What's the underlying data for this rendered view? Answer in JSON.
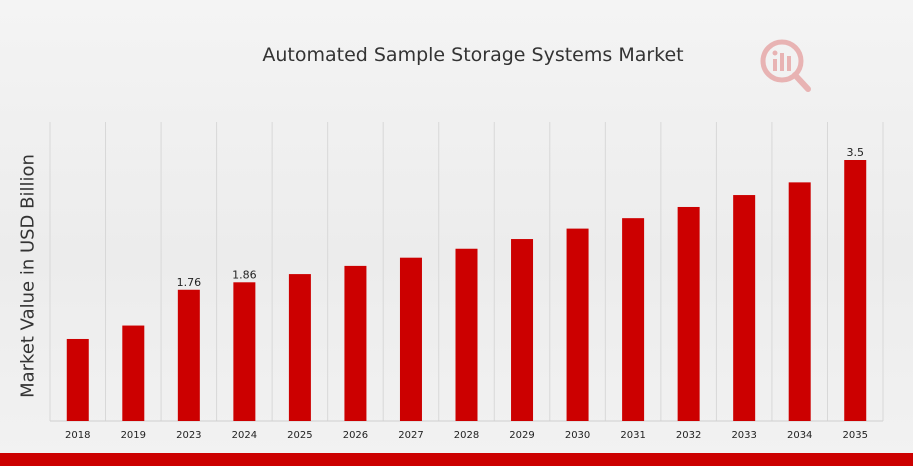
{
  "chart_data": {
    "type": "bar",
    "title": "Automated Sample Storage Systems Market",
    "ylabel": "Market Value in USD Billion",
    "xlabel": "",
    "categories": [
      "2018",
      "2019",
      "2023",
      "2024",
      "2025",
      "2026",
      "2027",
      "2028",
      "2029",
      "2030",
      "2031",
      "2032",
      "2033",
      "2034",
      "2035"
    ],
    "values": [
      1.1,
      1.28,
      1.76,
      1.86,
      1.97,
      2.08,
      2.19,
      2.31,
      2.44,
      2.58,
      2.72,
      2.87,
      3.03,
      3.2,
      3.5
    ],
    "data_labels": [
      {
        "category": "2023",
        "text": "1.76"
      },
      {
        "category": "2024",
        "text": "1.86"
      },
      {
        "category": "2035",
        "text": "3.5"
      }
    ],
    "ylim": [
      0,
      3.5
    ],
    "grid": "vertical",
    "colors": {
      "bar": "#cc0000",
      "grid": "#d8d8d8"
    }
  },
  "logo": {
    "icon": "market-research-logo-icon",
    "colors": {
      "primary": "#cc0000",
      "secondary": "#999999"
    }
  }
}
